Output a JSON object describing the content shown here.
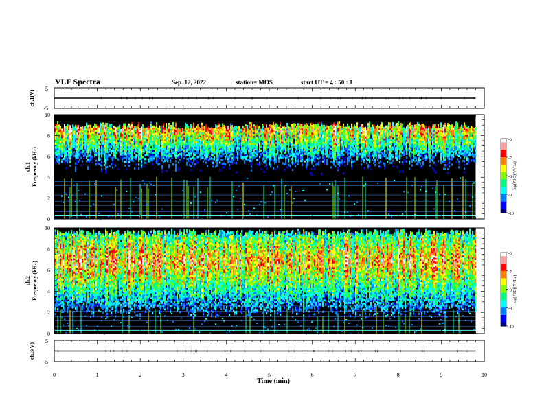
{
  "header": {
    "title": "VLF Spectra",
    "date": "Sep. 12, 2022",
    "station": "station= MOS",
    "start": "start  UT =   4 : 50 : 1"
  },
  "colors": {
    "scale": [
      "#000080",
      "#0000ff",
      "#0080ff",
      "#00ffff",
      "#00ff80",
      "#80ff00",
      "#ffff00",
      "#ff8000",
      "#ff0000",
      "#ffa0a0",
      "#ffffff"
    ],
    "trace": "#000000",
    "background_spectrogram": "#000000"
  },
  "chart_data": [
    {
      "type": "line",
      "name": "ch1-waveform",
      "ylabel": "ch.1(V)",
      "ylim": [
        -5,
        5
      ],
      "yticks": [
        "5",
        "-5"
      ],
      "xlim": [
        0,
        10
      ],
      "values": {
        "x": [
          0,
          9.8
        ],
        "y": [
          0,
          0
        ]
      }
    },
    {
      "type": "heatmap",
      "name": "ch1-spectrogram",
      "ylabel": "ch.1\nFrequency (kHz)",
      "xlim": [
        0,
        10
      ],
      "ylim": [
        0,
        10
      ],
      "yticks": [
        "0",
        "2",
        "4",
        "6",
        "8",
        "10"
      ],
      "data_end_min": 9.8,
      "colorbar": {
        "label": "log(PSD)(V²/Hz)",
        "ticks": [
          "-6",
          "-7",
          "-8",
          "-9",
          "-10"
        ],
        "range": [
          -10,
          -6
        ]
      },
      "band_khz": [
        3.5,
        9.2
      ],
      "band_peak_khz": 8.5,
      "hum_lines_khz": [
        0.3,
        0.7,
        1.3,
        1.7,
        2.3,
        3.2,
        3.6
      ]
    },
    {
      "type": "heatmap",
      "name": "ch2-spectrogram",
      "ylabel": "ch.2\nFrequency (kHz)",
      "xlim": [
        0,
        10
      ],
      "ylim": [
        0,
        10
      ],
      "yticks": [
        "0",
        "2",
        "4",
        "6",
        "8",
        "10"
      ],
      "data_end_min": 9.8,
      "colorbar": {
        "label": "log(PSD)(V²/Hz)",
        "ticks": [
          "-6",
          "-7",
          "-8",
          "-9",
          "-10"
        ],
        "range": [
          -10,
          -6
        ]
      },
      "band_khz": [
        2.0,
        9.8
      ],
      "band_peak_khz": 6.8,
      "hum_lines_khz": [
        0.7,
        1.2,
        1.6,
        2.1,
        2.6,
        3.1
      ]
    },
    {
      "type": "line",
      "name": "ch3-waveform",
      "ylabel": "ch.3(V)",
      "ylim": [
        -5,
        5
      ],
      "yticks": [
        "5",
        "-5"
      ],
      "xlim": [
        0,
        10
      ],
      "values": {
        "x": [
          0,
          9.8
        ],
        "y": [
          0,
          0
        ]
      }
    }
  ],
  "xaxis": {
    "label": "Time  (min)",
    "ticks": [
      "0",
      "1",
      "2",
      "3",
      "4",
      "5",
      "6",
      "7",
      "8",
      "9",
      "10"
    ]
  }
}
